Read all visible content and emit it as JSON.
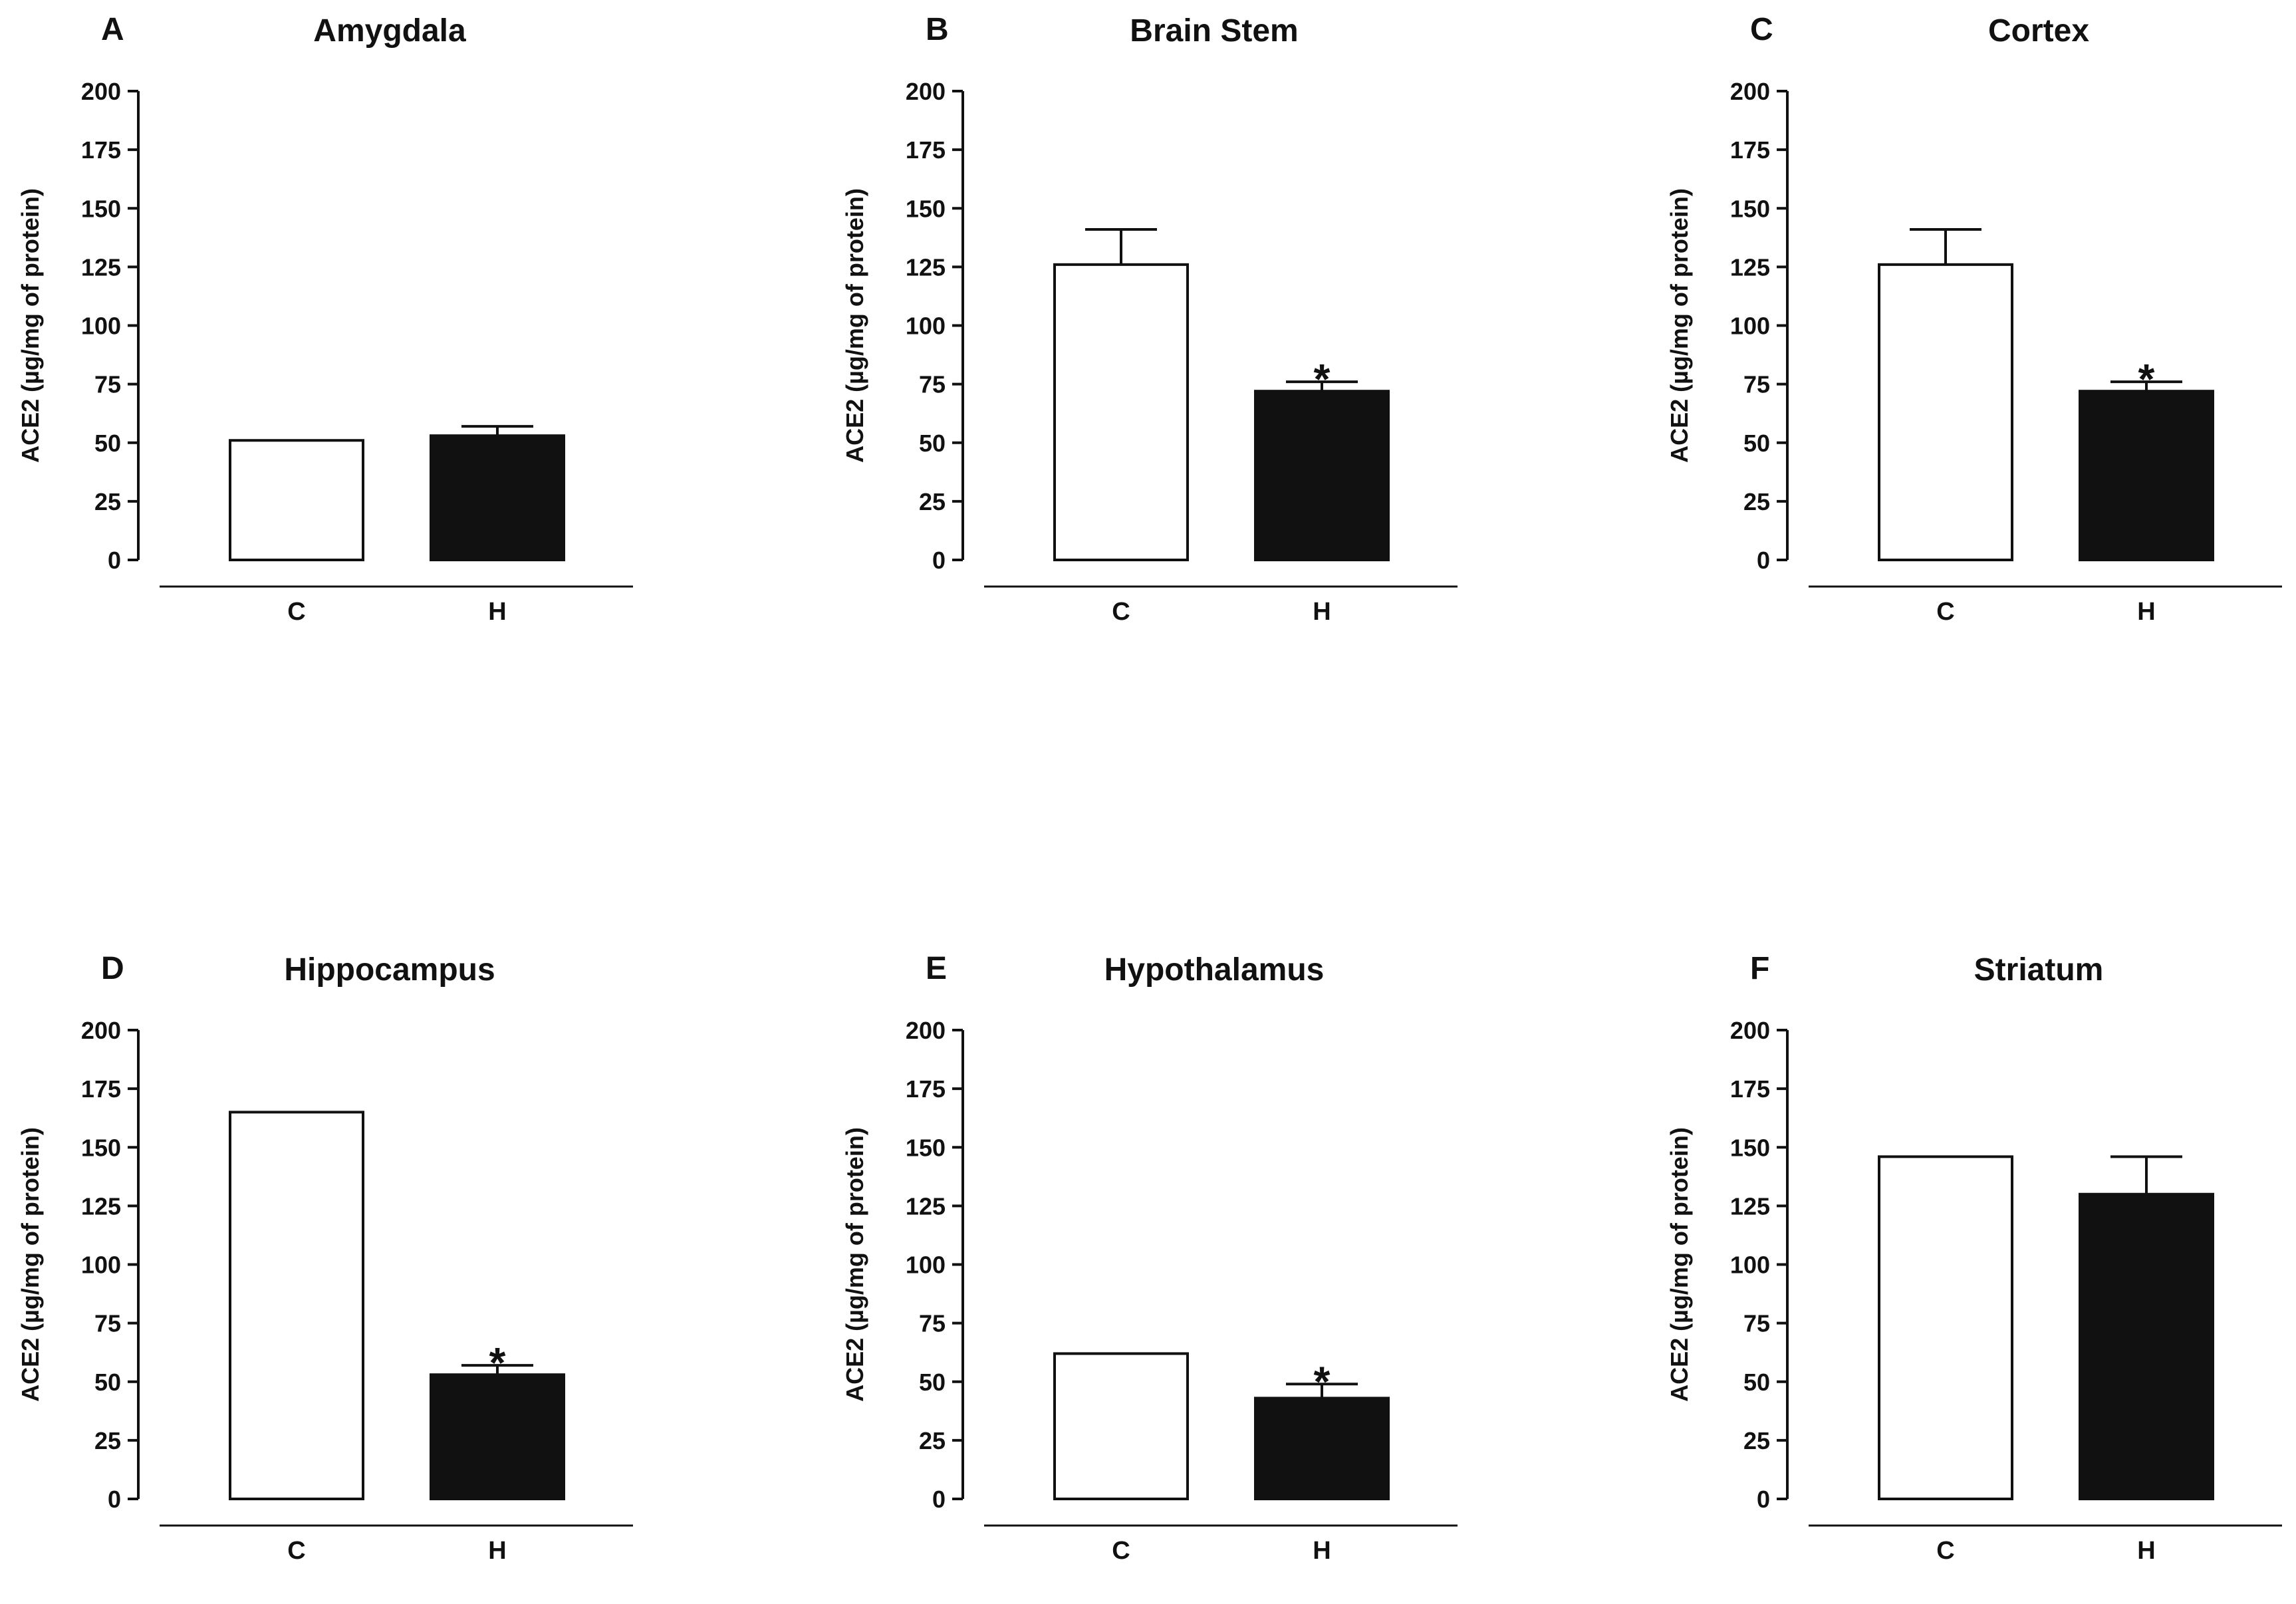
{
  "figure": {
    "background": "#ffffff",
    "ink": "#111111"
  },
  "chart_data": [
    {
      "panel": "A",
      "title": "Amygdala",
      "type": "bar",
      "ylabel": "ACE2 (µg/mg of protein)",
      "yticks": [
        "0",
        "25",
        "50",
        "75",
        "100",
        "125",
        "150",
        "175",
        "200"
      ],
      "ylim": [
        0,
        200
      ],
      "categories": [
        "C",
        "H"
      ],
      "values": [
        51,
        53
      ],
      "errors": [
        0,
        4
      ],
      "significance": [
        "",
        ""
      ],
      "fills": [
        "#ffffff",
        "#111111"
      ]
    },
    {
      "panel": "B",
      "title": "Brain Stem",
      "type": "bar",
      "ylabel": "ACE2 (µg/mg of protein)",
      "yticks": [
        "0",
        "25",
        "50",
        "75",
        "100",
        "125",
        "150",
        "175",
        "200"
      ],
      "ylim": [
        0,
        200
      ],
      "categories": [
        "C",
        "H"
      ],
      "values": [
        126,
        72
      ],
      "errors": [
        15,
        4
      ],
      "significance": [
        "",
        "*"
      ],
      "fills": [
        "#ffffff",
        "#111111"
      ]
    },
    {
      "panel": "C",
      "title": "Cortex",
      "type": "bar",
      "ylabel": "ACE2 (µg/mg of protein)",
      "yticks": [
        "0",
        "25",
        "50",
        "75",
        "100",
        "125",
        "150",
        "175",
        "200"
      ],
      "ylim": [
        0,
        200
      ],
      "categories": [
        "C",
        "H"
      ],
      "values": [
        126,
        72
      ],
      "errors": [
        15,
        4
      ],
      "significance": [
        "",
        "*"
      ],
      "fills": [
        "#ffffff",
        "#111111"
      ]
    },
    {
      "panel": "D",
      "title": "Hippocampus",
      "type": "bar",
      "ylabel": "ACE2 (µg/mg of protein)",
      "yticks": [
        "0",
        "25",
        "50",
        "75",
        "100",
        "125",
        "150",
        "175",
        "200"
      ],
      "ylim": [
        0,
        200
      ],
      "categories": [
        "C",
        "H"
      ],
      "values": [
        165,
        53
      ],
      "errors": [
        0,
        4
      ],
      "significance": [
        "",
        "*"
      ],
      "fills": [
        "#ffffff",
        "#111111"
      ]
    },
    {
      "panel": "E",
      "title": "Hypothalamus",
      "type": "bar",
      "ylabel": "ACE2 (µg/mg of protein)",
      "yticks": [
        "0",
        "25",
        "50",
        "75",
        "100",
        "125",
        "150",
        "175",
        "200"
      ],
      "ylim": [
        0,
        200
      ],
      "categories": [
        "C",
        "H"
      ],
      "values": [
        62,
        43
      ],
      "errors": [
        0,
        6
      ],
      "significance": [
        "",
        "*"
      ],
      "fills": [
        "#ffffff",
        "#111111"
      ]
    },
    {
      "panel": "F",
      "title": "Striatum",
      "type": "bar",
      "ylabel": "ACE2 (µg/mg of protein)",
      "yticks": [
        "0",
        "25",
        "50",
        "75",
        "100",
        "125",
        "150",
        "175",
        "200"
      ],
      "ylim": [
        0,
        200
      ],
      "categories": [
        "C",
        "H"
      ],
      "values": [
        146,
        130
      ],
      "errors": [
        0,
        16
      ],
      "significance": [
        "",
        ""
      ],
      "fills": [
        "#ffffff",
        "#111111"
      ]
    }
  ]
}
